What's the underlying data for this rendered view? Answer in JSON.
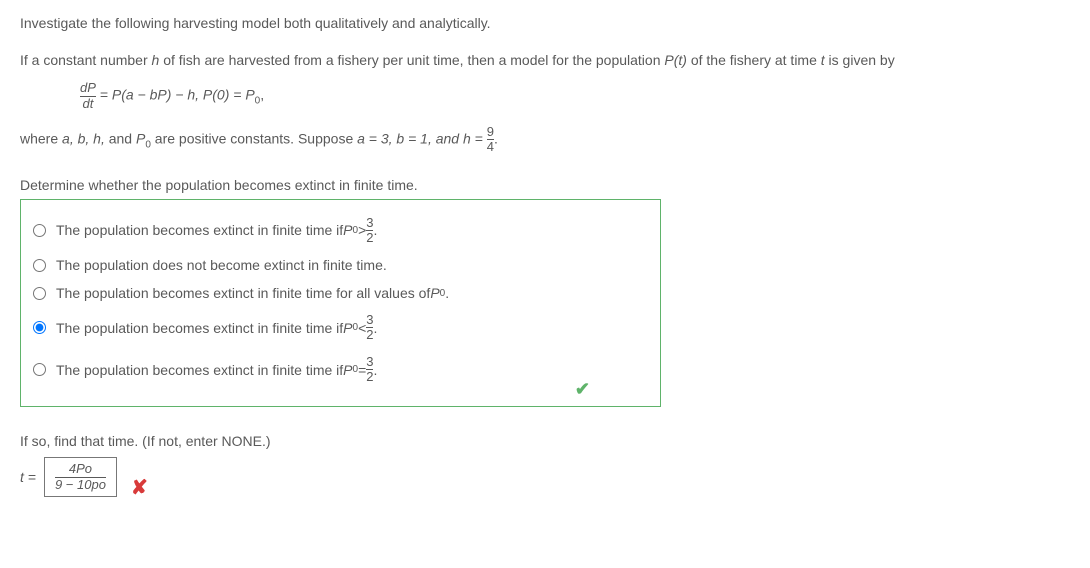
{
  "intro": "Investigate the following harvesting model both qualitatively and analytically.",
  "problem_text_prefix": "If a constant number ",
  "problem_text_mid1": " of fish are harvested from a fishery per unit time, then a model for the population ",
  "problem_text_mid2": " of the fishery at time ",
  "problem_text_suffix": " is given by",
  "var_h": "h",
  "var_Pt": "P(t)",
  "var_t": "t",
  "eqn_frac_num": "dP",
  "eqn_frac_den": "dt",
  "eqn_rhs": " = P(a − bP) − h,    P(0) = P",
  "eqn_sub0": "0",
  "eqn_tail": ",",
  "where_prefix": "where ",
  "where_vars": "a, b, h,",
  "where_and": " and ",
  "where_p0_pre": "P",
  "where_after": " are positive constants. Suppose ",
  "where_assign": "a = 3, b = 1, and h = ",
  "where_frac_num": "9",
  "where_frac_den": "4",
  "where_end": ".",
  "question": "Determine whether the population becomes extinct in finite time.",
  "options": [
    {
      "pre": "The population becomes extinct in finite time if ",
      "p0": "P",
      "rel": " > ",
      "fnum": "3",
      "fden": "2",
      "tail": ".",
      "selected": false,
      "has_frac": true
    },
    {
      "pre": "The population does not become extinct in finite time.",
      "p0": "",
      "rel": "",
      "fnum": "",
      "fden": "",
      "tail": "",
      "selected": false,
      "has_frac": false
    },
    {
      "pre": "The population becomes extinct in finite time for all values of ",
      "p0": "P",
      "rel": "",
      "fnum": "",
      "fden": "",
      "tail": ".",
      "selected": false,
      "has_frac": false,
      "show_sub": true
    },
    {
      "pre": "The population becomes extinct in finite time if ",
      "p0": "P",
      "rel": " < ",
      "fnum": "3",
      "fden": "2",
      "tail": ".",
      "selected": true,
      "has_frac": true
    },
    {
      "pre": "The population becomes extinct in finite time if ",
      "p0": "P",
      "rel": " = ",
      "fnum": "3",
      "fden": "2",
      "tail": ".",
      "selected": false,
      "has_frac": true
    }
  ],
  "checkmark": "✔",
  "followup": "If so, find that time. (If not, enter NONE.)",
  "ans_label": "t = ",
  "ans_frac_num": "4Po",
  "ans_frac_den": "9 − 10po",
  "x_mark": "✘",
  "colors": {
    "text": "#595959",
    "box_border": "#5fb36a",
    "correct": "#5fb36a",
    "wrong": "#d83a3a",
    "input_border": "#777"
  }
}
